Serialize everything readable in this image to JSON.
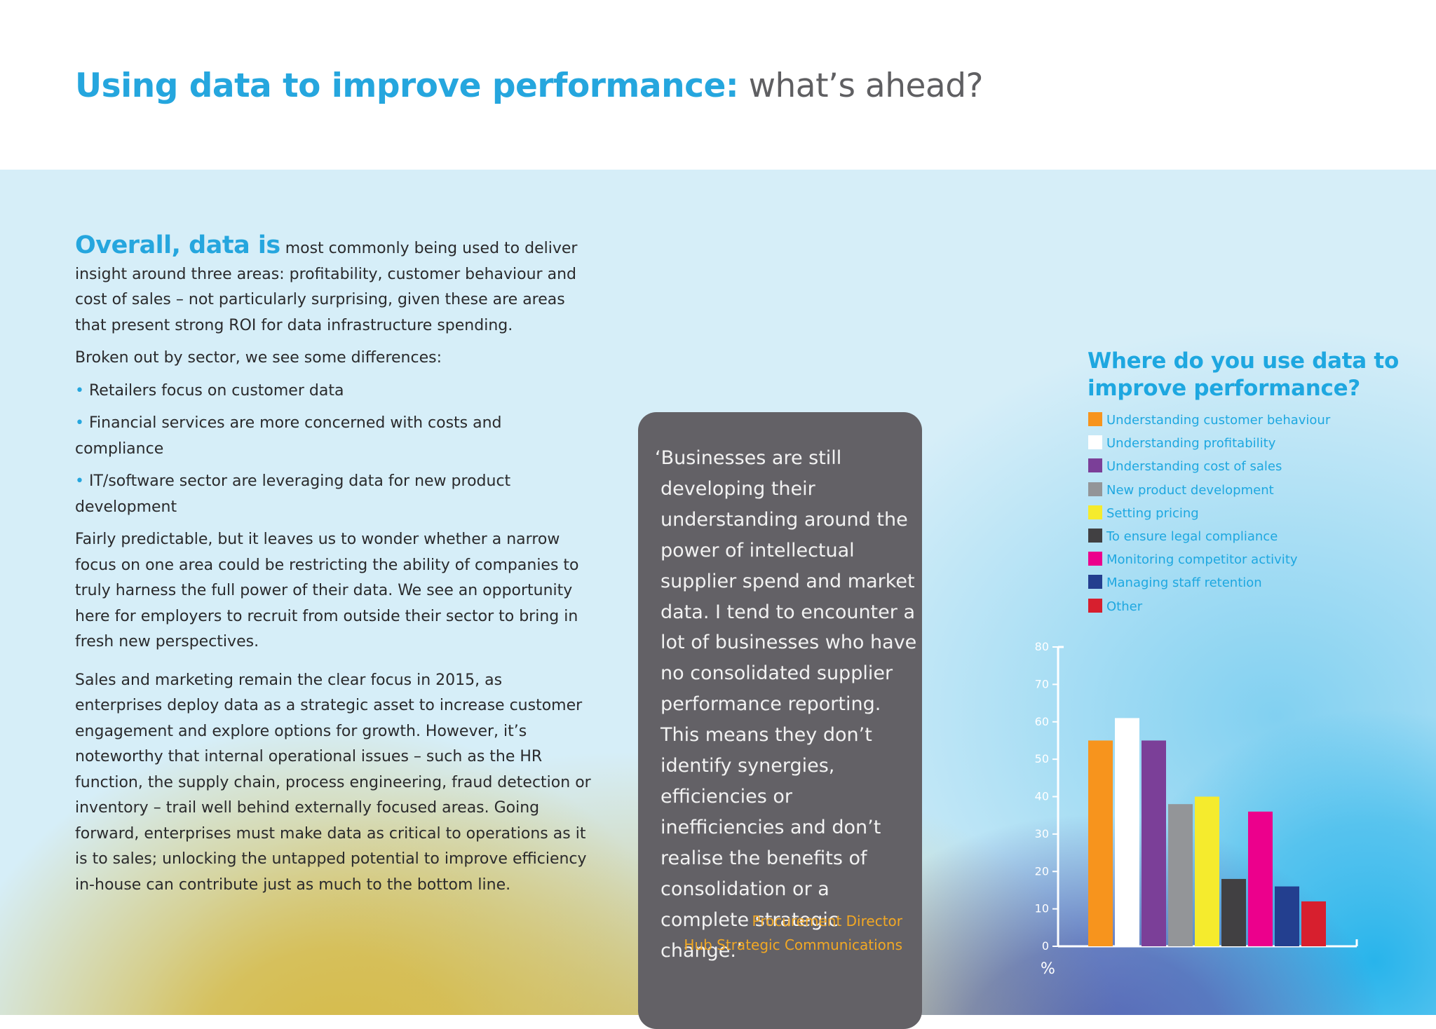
{
  "title": {
    "bold": "Using data to improve performance:",
    "normal": " what’s ahead?"
  },
  "body": {
    "lead": "Overall, data is",
    "p1": " most commonly being used to deliver insight around three areas: profitability, customer behaviour and cost of sales – not particularly surprising, given these are areas that present strong ROI for data infrastructure spending.",
    "p2": "Broken out by sector, we see some differences:",
    "bullet_symbol": "•",
    "bullets": [
      "Retailers focus on customer data",
      "Financial services are more concerned with costs and compliance",
      "IT/software sector are leveraging data for new product development"
    ],
    "p3": "Fairly predictable, but it leaves us to wonder whether a narrow focus on one area could be restricting the ability of companies to truly harness the full power of their data. We see an opportunity here for employers to recruit from outside their sector to bring in fresh new perspectives.",
    "p4": "Sales and marketing remain the clear focus in 2015, as enterprises deploy data as a strategic asset to increase customer engagement and explore options for growth. However, it’s noteworthy that internal operational issues – such as the HR function, the supply chain, process engineering, fraud detection or inventory – trail well behind externally focused areas. Going forward, enterprises must make data as critical to operations as it is to sales; unlocking the untapped potential to improve efficiency in-house can contribute just as much to the bottom line."
  },
  "quote": {
    "text": "‘Businesses are still developing their understanding around the power of intellectual supplier spend and market data. I tend to encounter a lot of businesses who have no consolidated supplier performance reporting. This means they don’t identify synergies, efficiencies or inefficiencies and don’t realise the benefits of consolidation or a complete strategic change.’",
    "role": "Procurement Director",
    "org": "Hub Strategic Communications"
  },
  "chart_data": {
    "type": "bar",
    "title": "Where do you use data to improve performance?",
    "categories": [
      "Understanding customer behaviour",
      "Understanding profitability",
      "Understanding cost of sales",
      "New product development",
      "Setting pricing",
      "To ensure legal compliance",
      "Monitoring competitor activity",
      "Managing staff retention",
      "Other"
    ],
    "values": [
      55,
      61,
      55,
      38,
      40,
      18,
      36,
      16,
      12
    ],
    "colors": [
      "#f7941d",
      "#ffffff",
      "#7b3f98",
      "#939598",
      "#f5eb2d",
      "#414042",
      "#ec008c",
      "#233f8f",
      "#d71f2e"
    ],
    "yticks": [
      0,
      10,
      20,
      30,
      40,
      50,
      60,
      70,
      80
    ],
    "ylim": [
      0,
      80
    ],
    "ylabel": "%",
    "legend_position": "top"
  }
}
